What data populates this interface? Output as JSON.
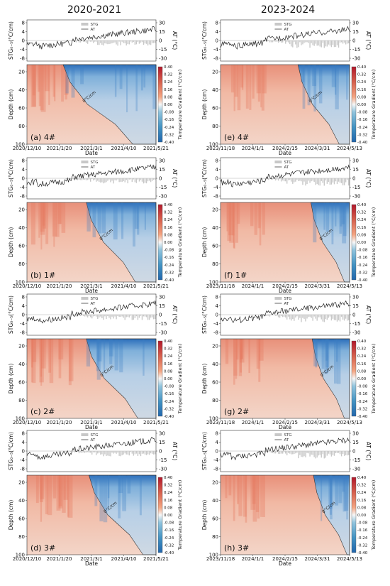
{
  "columns": [
    {
      "title": "2020-2021",
      "dates": [
        "2020/12/10",
        "2021/1/20",
        "2021/3/1",
        "2021/4/10",
        "2021/5/21"
      ]
    },
    {
      "title": "2023-2024",
      "dates": [
        "2023/11/18",
        "2024/1/1",
        "2024/2/15",
        "2024/3/31",
        "2024/5/13"
      ]
    }
  ],
  "labels": {
    "stg_axis": "STG₀₋₅(°C/cm)",
    "at_axis": "AT (°C)",
    "depth_axis": "Depth (cm)",
    "date_axis": "Date",
    "colorbar": "Temperature Gradient (°C/cm)",
    "legend_stg": "STG",
    "legend_at": "AT",
    "isoline": "0°C/cm"
  },
  "ticks": {
    "stg": [
      "8",
      "4",
      "0",
      "-4",
      "-8"
    ],
    "at": [
      "30",
      "15",
      "0",
      "-15",
      "-30"
    ],
    "depth": [
      "20",
      "40",
      "60",
      "80",
      "100"
    ],
    "colorbar": [
      "0.40",
      "0.32",
      "0.24",
      "0.16",
      "0.08",
      "0.00",
      "-0.08",
      "-0.16",
      "-0.24",
      "-0.32",
      "-0.40"
    ]
  },
  "colors": {
    "warm": "#d6604d",
    "cool": "#4393c3",
    "neutral_warm": "#f3d5c8",
    "neutral_cool": "#c9d6e3",
    "at_line": "#222222",
    "stg_bar": "#c8c8c8"
  },
  "panels": [
    {
      "label": "(a)",
      "site": "4#",
      "col": 0,
      "row": 0,
      "transition_top": 0.28,
      "transition_bottom": 0.82
    },
    {
      "label": "(b)",
      "site": "1#",
      "col": 0,
      "row": 1,
      "transition_top": 0.46,
      "transition_bottom": 0.84
    },
    {
      "label": "(c)",
      "site": "2#",
      "col": 0,
      "row": 2,
      "transition_top": 0.46,
      "transition_bottom": 0.86
    },
    {
      "label": "(d)",
      "site": "3#",
      "col": 0,
      "row": 3,
      "transition_top": 0.48,
      "transition_bottom": 0.9
    },
    {
      "label": "(e)",
      "site": "4#",
      "col": 1,
      "row": 0,
      "transition_top": 0.6,
      "transition_bottom": 0.92
    },
    {
      "label": "(f)",
      "site": "1#",
      "col": 1,
      "row": 1,
      "transition_top": 0.7,
      "transition_bottom": 0.96
    },
    {
      "label": "(g)",
      "site": "2#",
      "col": 1,
      "row": 2,
      "transition_top": 0.71,
      "transition_bottom": 0.96
    },
    {
      "label": "(h)",
      "site": "3#",
      "col": 1,
      "row": 3,
      "transition_top": 0.72,
      "transition_bottom": 0.98
    }
  ]
}
